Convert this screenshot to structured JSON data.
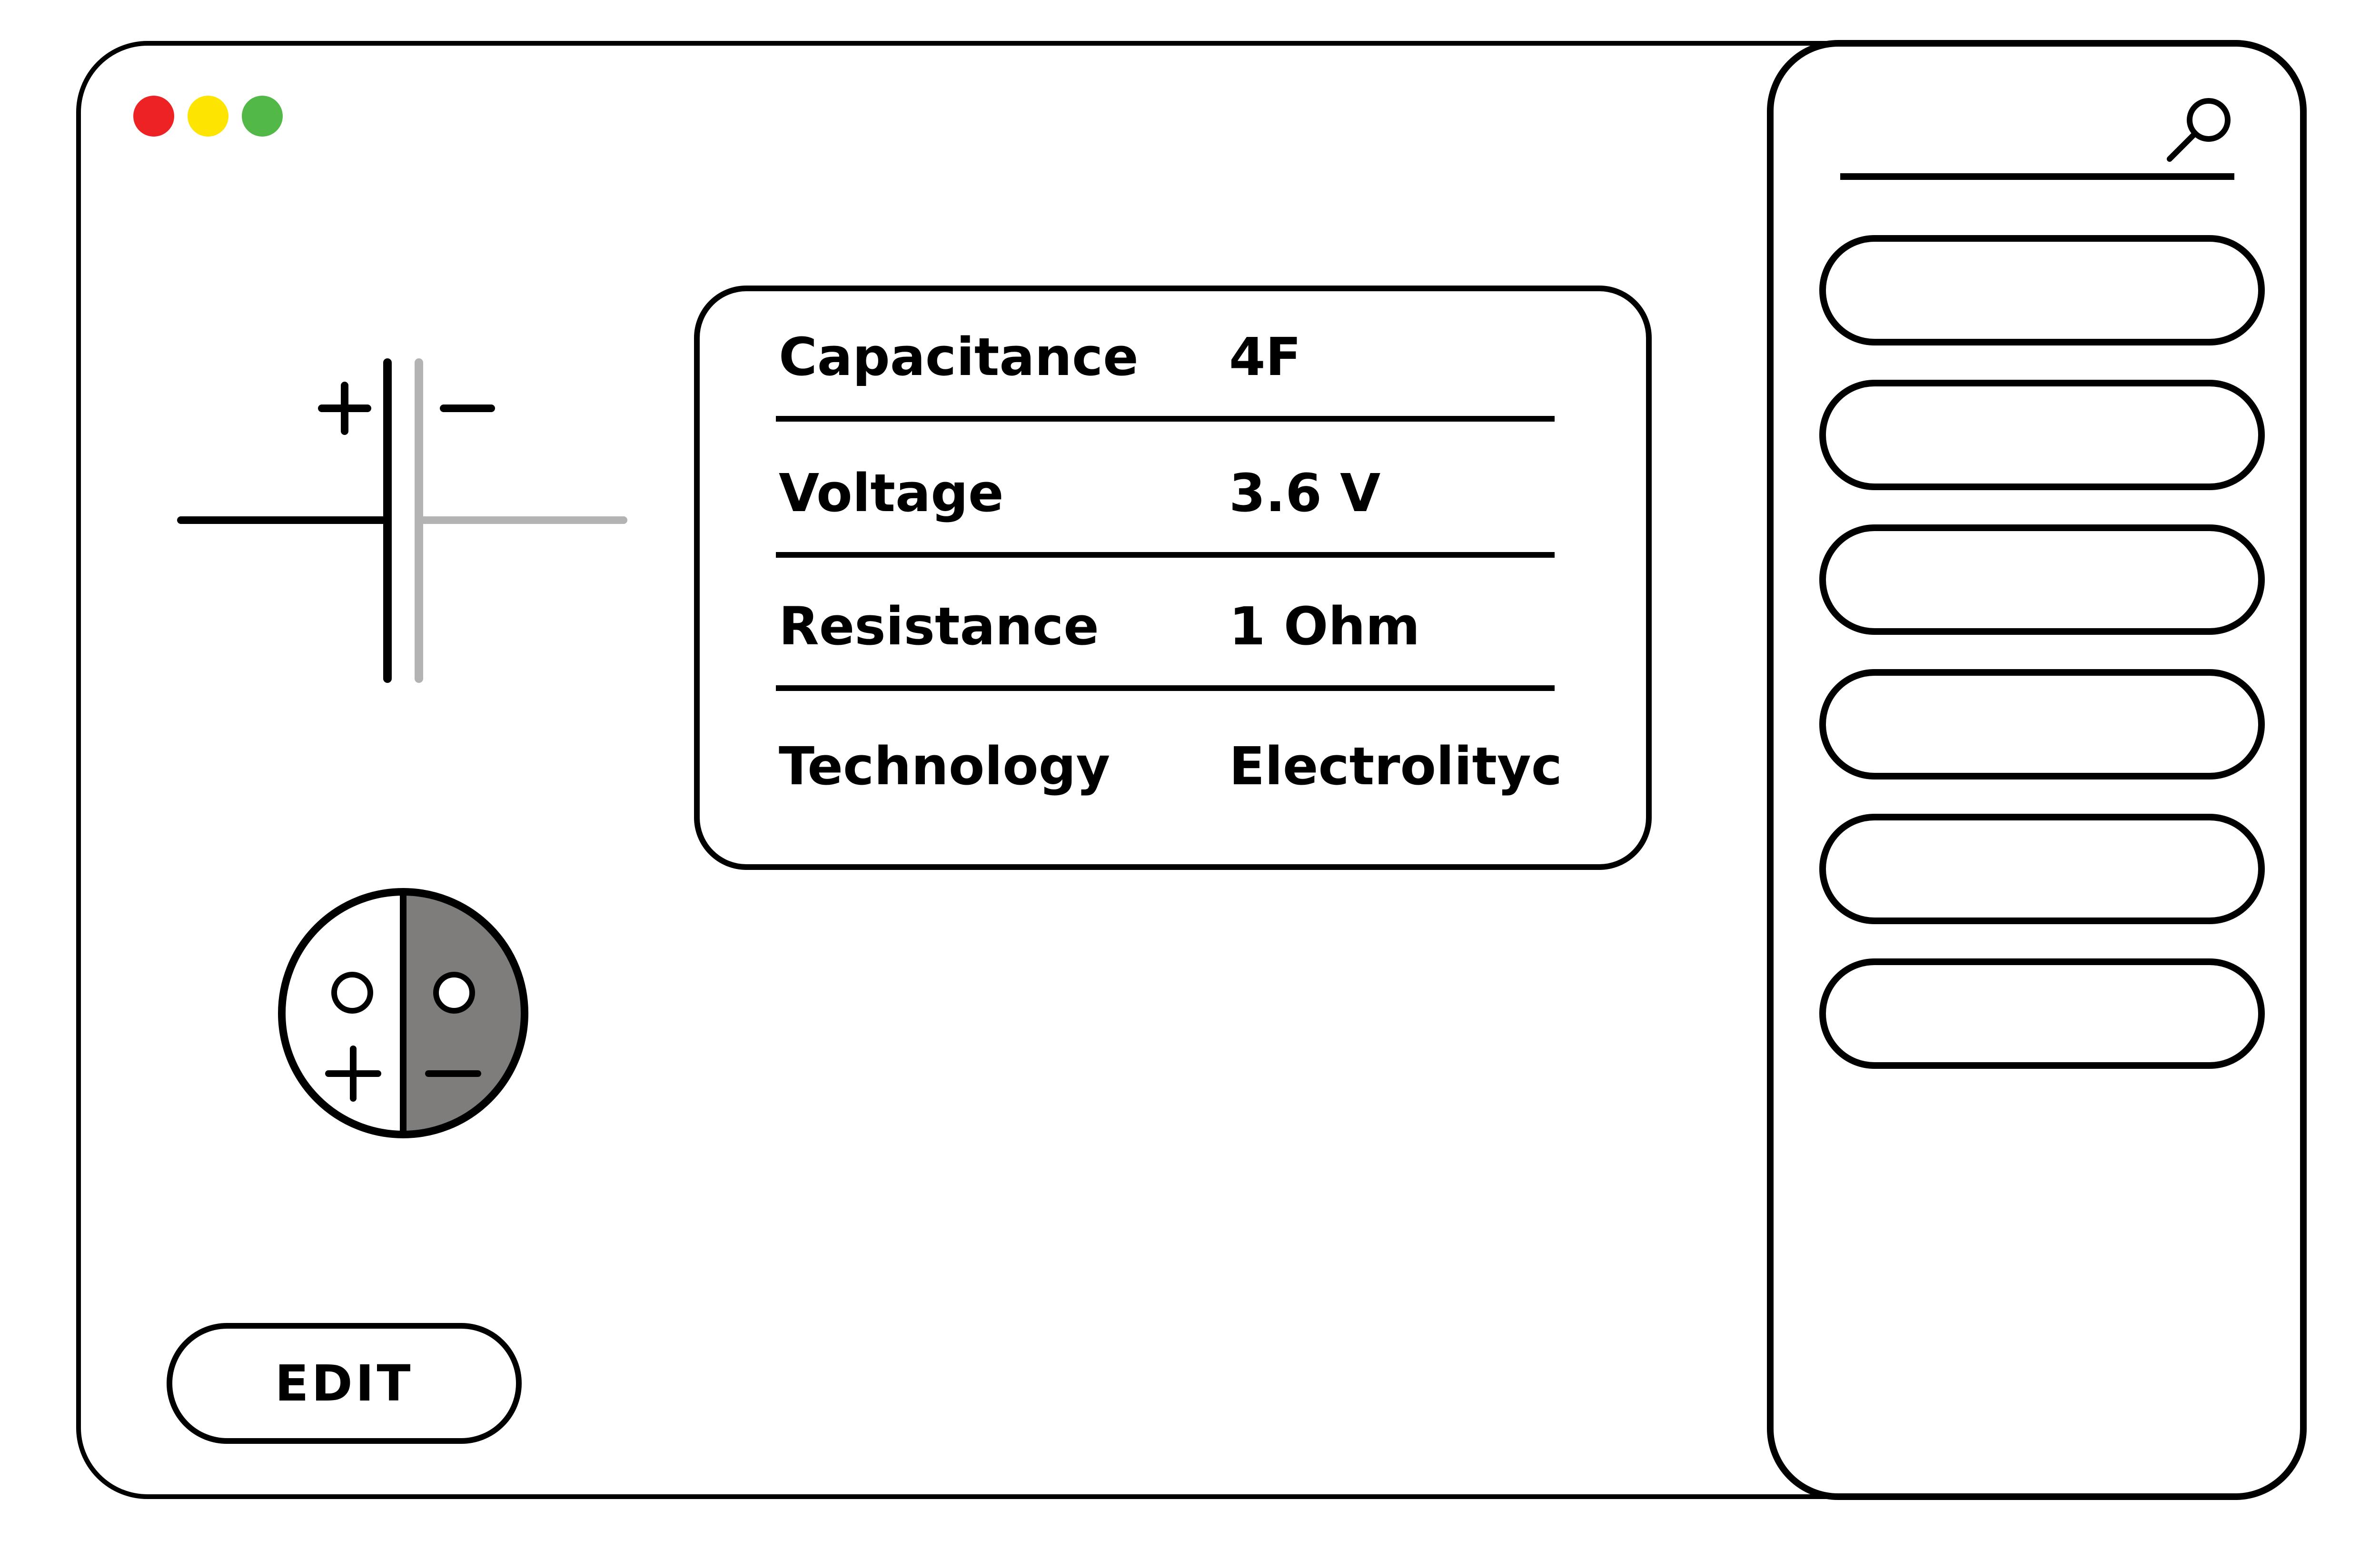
{
  "window": {
    "controls": {
      "close_color": "#ed2224",
      "minimize_color": "#fde401",
      "maximize_color": "#52b848"
    }
  },
  "symbol": {
    "plus_icon": "plus-sign",
    "minus_icon": "minus-sign"
  },
  "specs": [
    {
      "label": "Capacitance",
      "value": "4F"
    },
    {
      "label": "Voltage",
      "value": "3.6 V"
    },
    {
      "label": "Resistance",
      "value": "1 Ohm"
    },
    {
      "label": "Technology",
      "value": "Electrolityc"
    }
  ],
  "component": {
    "icon": "electrolytic-capacitor-top-view",
    "negative_fill": "#7f7c7c"
  },
  "actions": {
    "edit_label": "EDIT"
  },
  "sidebar": {
    "search": {
      "value": "",
      "icon": "search-icon"
    },
    "items": [
      {
        "label": ""
      },
      {
        "label": ""
      },
      {
        "label": ""
      },
      {
        "label": ""
      },
      {
        "label": ""
      },
      {
        "label": ""
      }
    ]
  }
}
